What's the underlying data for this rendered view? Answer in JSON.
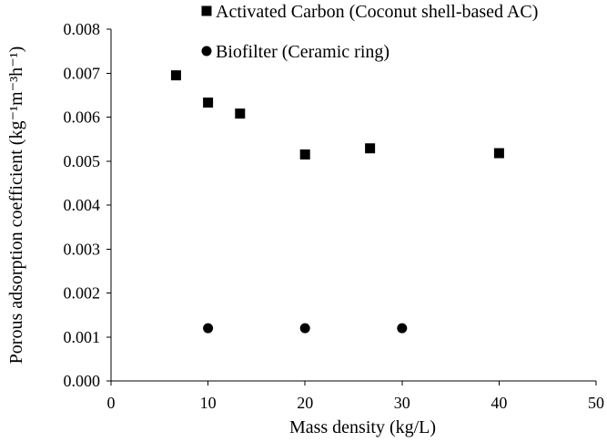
{
  "chart_data": {
    "type": "scatter",
    "title": "",
    "xlabel": "Mass density (kg/L)",
    "ylabel": "Porous adsorption coefficient (kg⁻¹m⁻³h⁻¹)",
    "xlim": [
      0,
      50
    ],
    "ylim": [
      0,
      0.008
    ],
    "x_ticks": [
      0,
      10,
      20,
      30,
      40,
      50
    ],
    "x_tick_labels": [
      "0",
      "10",
      "20",
      "30",
      "40",
      "50"
    ],
    "y_ticks": [
      0,
      0.001,
      0.002,
      0.003,
      0.004,
      0.005,
      0.006,
      0.007,
      0.008
    ],
    "y_tick_labels": [
      "0.000",
      "0.001",
      "0.002",
      "0.003",
      "0.004",
      "0.005",
      "0.006",
      "0.007",
      "0.008"
    ],
    "grid": false,
    "legend_position": "top-right",
    "series": [
      {
        "name": "Activated Carbon (Coconut shell-based AC)",
        "marker": "square",
        "color": "#000000",
        "points": [
          {
            "x": 6.7,
            "y": 0.00695
          },
          {
            "x": 10,
            "y": 0.00633
          },
          {
            "x": 13.3,
            "y": 0.00608
          },
          {
            "x": 20,
            "y": 0.00515
          },
          {
            "x": 26.7,
            "y": 0.00529
          },
          {
            "x": 40,
            "y": 0.00518
          }
        ]
      },
      {
        "name": "Biofilter (Ceramic ring)",
        "marker": "circle",
        "color": "#000000",
        "points": [
          {
            "x": 10,
            "y": 0.0012
          },
          {
            "x": 20,
            "y": 0.0012
          },
          {
            "x": 30,
            "y": 0.0012
          }
        ]
      }
    ]
  }
}
